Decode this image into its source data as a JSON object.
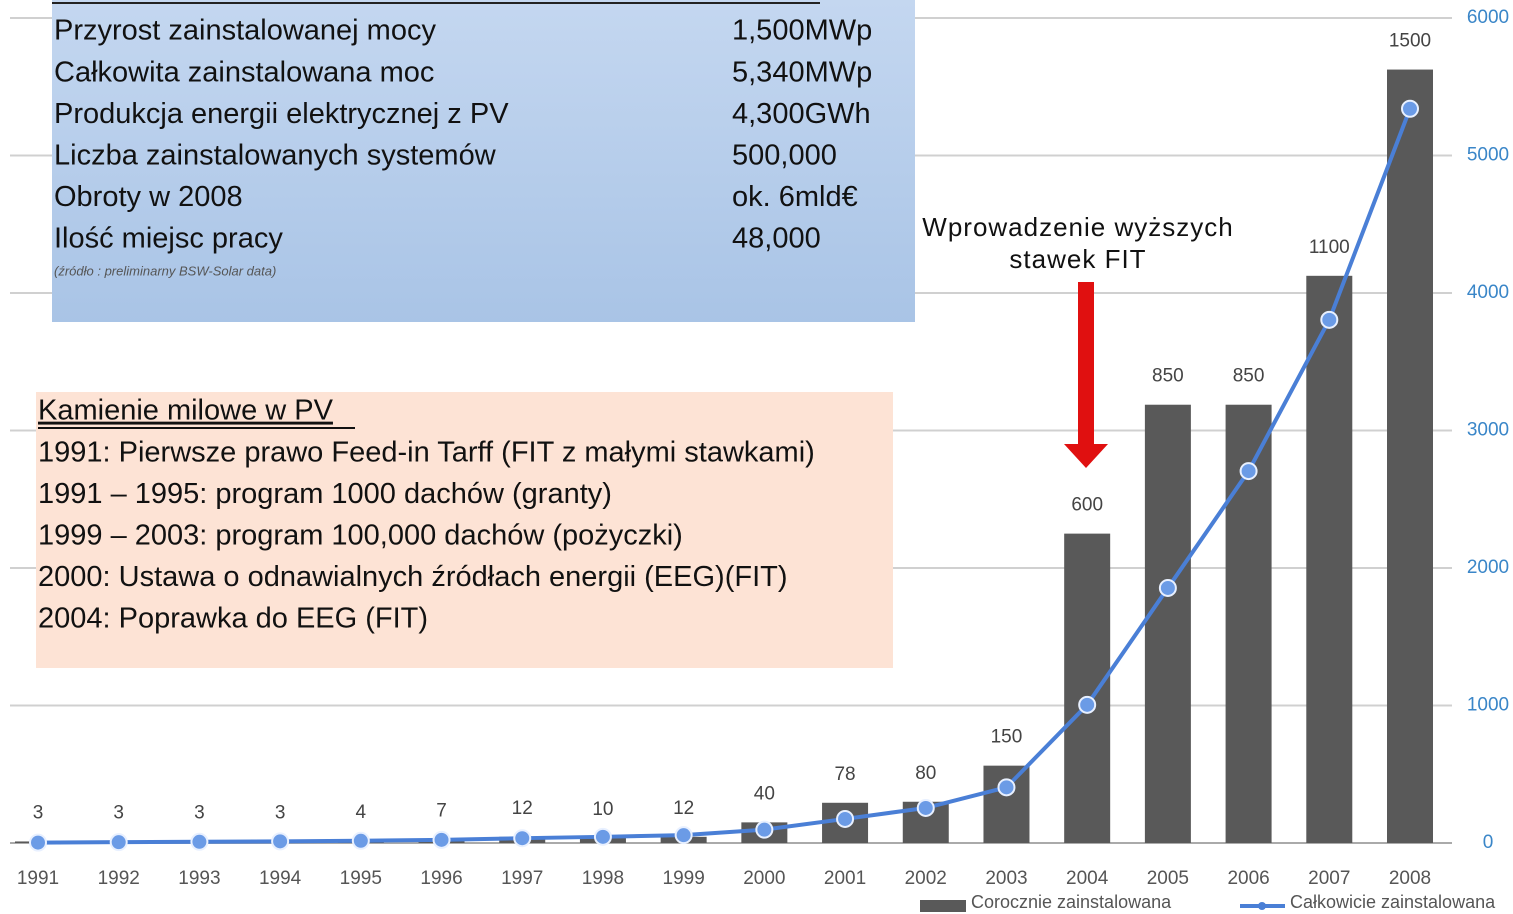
{
  "chart_data": {
    "type": "bar_line",
    "categories": [
      "1991",
      "1992",
      "1993",
      "1994",
      "1995",
      "1996",
      "1997",
      "1998",
      "1999",
      "2000",
      "2001",
      "2002",
      "2003",
      "2004",
      "2005",
      "2006",
      "2007",
      "2008"
    ],
    "series": [
      {
        "name": "Corocznie zainstalowana",
        "type": "bar",
        "color": "#595959",
        "values": [
          3,
          3,
          3,
          3,
          4,
          7,
          12,
          10,
          12,
          40,
          78,
          80,
          150,
          600,
          850,
          850,
          1100,
          1500
        ]
      },
      {
        "name": "Całkowicie zainstalowana",
        "type": "line",
        "axis": "y2",
        "color": "#4a7fd6",
        "values": [
          3,
          6,
          9,
          12,
          16,
          23,
          35,
          45,
          57,
          97,
          175,
          255,
          405,
          1005,
          1855,
          2705,
          3805,
          5340
        ]
      }
    ],
    "ylim": [
      0,
      1600
    ],
    "y2lim": [
      0,
      6000
    ],
    "y2ticks": [
      0,
      1000,
      2000,
      3000,
      4000,
      5000,
      6000
    ],
    "grid": true,
    "annotation": [
      "Wprowadzenie wyższych",
      "stawek FIT"
    ]
  },
  "summary_table": {
    "rows": [
      [
        "Przyrost zainstalowanej mocy",
        "1,500MWp"
      ],
      [
        "Całkowita zainstalowana moc",
        "5,340MWp"
      ],
      [
        "Produkcja energii elektrycznej z PV",
        "4,300GWh"
      ],
      [
        "Liczba zainstalowanych systemów",
        "500,000"
      ],
      [
        "Obroty  w 2008",
        "ok. 6mld€"
      ],
      [
        "Ilość miejsc pracy",
        "48,000"
      ]
    ],
    "source": "(źródło : preliminarny BSW-Solar data)"
  },
  "milestones": {
    "title": "Kamienie milowe w PV",
    "items": [
      "1991: Pierwsze prawo Feed-in Tarff (FIT z małymi stawkami)",
      "1991 – 1995: program 1000 dachów (granty)",
      "1999 – 2003: program 100,000 dachów (pożyczki)",
      "2000: Ustawa o odnawialnych źródłach energii (EEG)(FIT)",
      "2004: Poprawka do EEG (FIT)"
    ]
  }
}
